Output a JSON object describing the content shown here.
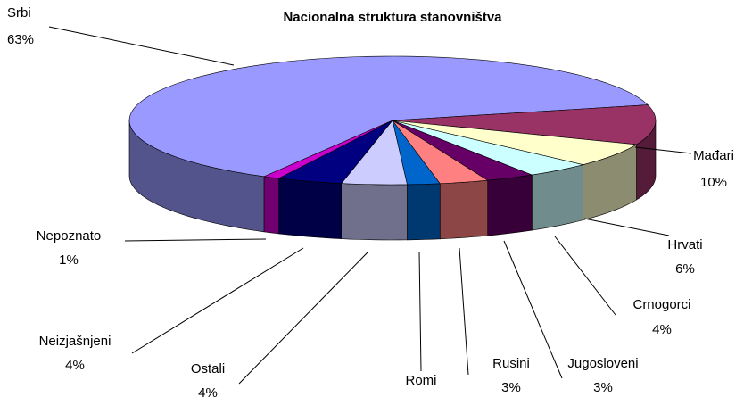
{
  "chart_data": {
    "type": "pie",
    "title": "Nacionalna struktura stanovništva",
    "categories": [
      "Srbi",
      "Mađari",
      "Hrvati",
      "Crnogorci",
      "Jugosloveni",
      "Rusini",
      "Romi",
      "Ostali",
      "Neizjašnjeni",
      "Nepoznato"
    ],
    "values": [
      63,
      10,
      6,
      4,
      3,
      3,
      2,
      4,
      4,
      1
    ],
    "value_labels": [
      "63%",
      "10%",
      "6%",
      "4%",
      "3%",
      "3%",
      null,
      "4%",
      "4%",
      "1%"
    ],
    "colors": [
      "#9999ff",
      "#993366",
      "#ffffcc",
      "#ccffff",
      "#660066",
      "#ff8080",
      "#0066cc",
      "#ccccff",
      "#000080",
      "#cc00cc"
    ]
  }
}
